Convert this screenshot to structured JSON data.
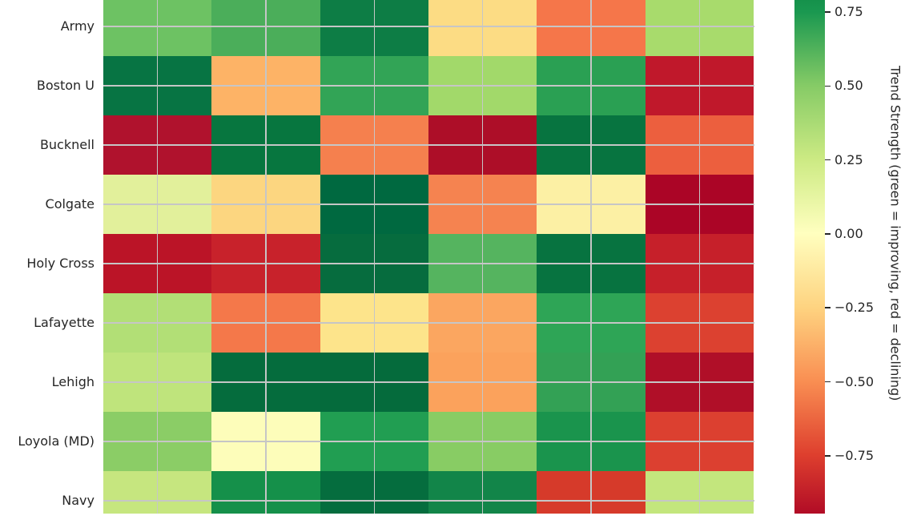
{
  "chart_data": {
    "type": "heatmap",
    "title": "",
    "rows": [
      "Army",
      "Boston U",
      "Bucknell",
      "Colgate",
      "Holy Cross",
      "Lafayette",
      "Lehigh",
      "Loyola (MD)",
      "Navy"
    ],
    "n_columns": 6,
    "columns": [
      "",
      "",
      "",
      "",
      "",
      ""
    ],
    "x_axis_labels_visible": false,
    "values_note": "values estimated from RdYlGn cell colors; x tick labels cropped out of screenshot",
    "values": [
      [
        0.57,
        0.65,
        0.85,
        -0.21,
        -0.58,
        0.4
      ],
      [
        0.9,
        -0.39,
        0.72,
        0.41,
        0.74,
        -0.87
      ],
      [
        -0.93,
        0.91,
        -0.55,
        -0.94,
        0.91,
        -0.66
      ],
      [
        0.15,
        -0.24,
        0.98,
        -0.53,
        -0.08,
        -0.97
      ],
      [
        -0.9,
        -0.84,
        0.95,
        0.63,
        0.92,
        -0.85
      ],
      [
        0.34,
        -0.58,
        -0.18,
        -0.43,
        0.73,
        -0.77
      ],
      [
        0.28,
        0.95,
        0.95,
        -0.45,
        0.73,
        -0.93
      ],
      [
        0.48,
        0.01,
        0.76,
        0.49,
        0.81,
        -0.77
      ],
      [
        0.25,
        0.83,
        0.94,
        0.87,
        -0.8,
        0.26
      ]
    ],
    "cell_colors": [
      [
        "#6dc263",
        "#4bae5a",
        "#0d7d45",
        "#fcdc84",
        "#f5764a",
        "#a8db6c"
      ],
      [
        "#077443",
        "#fdb366",
        "#32a456",
        "#a2d96a",
        "#2aa053",
        "#c0182b"
      ],
      [
        "#b0122d",
        "#07763f",
        "#f5804e",
        "#ad0e28",
        "#077440",
        "#ec5f3e"
      ],
      [
        "#e2f09b",
        "#fcd680",
        "#006940",
        "#f58350",
        "#fcf0a4",
        "#ab0526"
      ],
      [
        "#bb1427",
        "#c8222b",
        "#066c3e",
        "#55b45f",
        "#077340",
        "#c6202a"
      ],
      [
        "#b2df76",
        "#f4784a",
        "#fde48b",
        "#fba660",
        "#2ea556",
        "#dc4130"
      ],
      [
        "#bfe47c",
        "#056c3d",
        "#056b3c",
        "#fba25c",
        "#33a155",
        "#b00f28"
      ],
      [
        "#8bcd66",
        "#fdfdba",
        "#219e52",
        "#88cc64",
        "#1a944d",
        "#dc4030"
      ],
      [
        "#c6e67f",
        "#15904a",
        "#056d3e",
        "#128549",
        "#d63a2a",
        "#c3e67d"
      ]
    ],
    "grid": {
      "color": "#c6c6c6",
      "position": "cell-centers",
      "visible": true
    },
    "legend_position": "right",
    "colorbar": {
      "label": "Trend Strength (green = improving, red = declining)",
      "colormap": "RdYlGn",
      "ticks": [
        "0.75",
        "0.50",
        "0.25",
        "0.00",
        "−0.25",
        "−0.50",
        "−0.75"
      ],
      "tick_values": [
        0.75,
        0.5,
        0.25,
        0.0,
        -0.25,
        -0.5,
        -0.75
      ],
      "visible_value_range": [
        -0.95,
        0.79
      ],
      "gradient_stops": [
        {
          "pct": 0.0,
          "color": "#15914b"
        },
        {
          "pct": 2.3,
          "color": "#1a9850"
        },
        {
          "pct": 16.7,
          "color": "#86cb66"
        },
        {
          "pct": 31.0,
          "color": "#ccea83"
        },
        {
          "pct": 45.4,
          "color": "#ffffbf"
        },
        {
          "pct": 59.9,
          "color": "#fed380"
        },
        {
          "pct": 74.3,
          "color": "#f98e52"
        },
        {
          "pct": 88.6,
          "color": "#de3f2e"
        },
        {
          "pct": 100.0,
          "color": "#b10c26"
        }
      ]
    },
    "text_color": "#262626",
    "background_color": "#ffffff"
  }
}
